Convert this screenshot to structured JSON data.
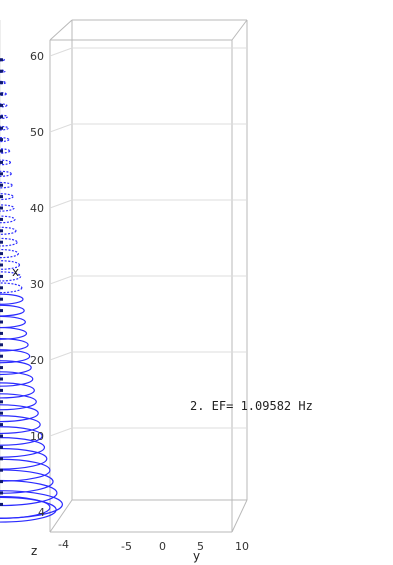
{
  "chart_data": {
    "type": "3d-mode-shape",
    "annotation": "2. EF= 1.09582 Hz",
    "axes": {
      "x": {
        "label": "x",
        "range": [
          0,
          64
        ],
        "ticks": [
          "10",
          "20",
          "30",
          "40",
          "50",
          "60"
        ]
      },
      "y": {
        "label": "y",
        "range": [
          -6,
          12
        ],
        "ticks": [
          "-5",
          "0",
          "5",
          "10"
        ]
      },
      "z": {
        "label": "z",
        "range": [
          -4,
          4
        ],
        "ticks": [
          "4",
          "-4"
        ]
      }
    },
    "grid": true,
    "colors": {
      "rings": "#2b2bff",
      "centerline": "#101a6e",
      "box": "#b9b9b9",
      "grid": "#dcdcdc"
    },
    "rings": {
      "count": 40,
      "x_positions": [
        1,
        2.5,
        4,
        5.5,
        7,
        8.5,
        10,
        11.5,
        13,
        14.5,
        16,
        17.5,
        19,
        20.5,
        22,
        23.5,
        25,
        26.5,
        28,
        29.5,
        31,
        32.5,
        34,
        35.5,
        37,
        38.5,
        40,
        41.5,
        43,
        44.5,
        46,
        47.5,
        49,
        50.5,
        52,
        53.5,
        55,
        56.5,
        58,
        59.5
      ],
      "y_offset": [
        0,
        0.05,
        0.1,
        0.2,
        0.3,
        0.45,
        0.6,
        0.8,
        1.0,
        1.2,
        1.45,
        1.7,
        2.0,
        2.3,
        2.6,
        2.9,
        3.25,
        3.6,
        4.0,
        4.4,
        4.8,
        5.2,
        5.6,
        6.05,
        6.5,
        6.95,
        7.4,
        7.85,
        8.3,
        8.8,
        9.3,
        9.8,
        10.3,
        10.8,
        11.3,
        11.8,
        12.3,
        12.8,
        13.3,
        13.8
      ],
      "radius": [
        8.0,
        7.3,
        6.8,
        6.4,
        6.0,
        5.7,
        5.4,
        5.15,
        4.9,
        4.65,
        4.4,
        4.2,
        4.0,
        3.8,
        3.6,
        3.4,
        3.25,
        3.1,
        2.95,
        2.8,
        2.65,
        2.5,
        2.35,
        2.2,
        2.05,
        1.92,
        1.8,
        1.68,
        1.56,
        1.45,
        1.34,
        1.24,
        1.14,
        1.05,
        0.96,
        0.88,
        0.8,
        0.72,
        0.64,
        0.56
      ]
    }
  }
}
